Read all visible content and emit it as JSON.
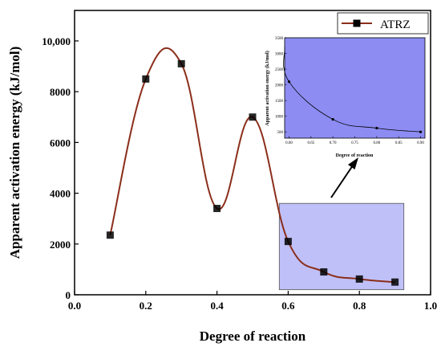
{
  "chart_data": [
    {
      "type": "line",
      "title": "",
      "xlabel": "Degree of reaction",
      "ylabel": "Apparent activation energy (kJ/mol)",
      "xlim": [
        0.0,
        1.0
      ],
      "ylim": [
        0,
        11200
      ],
      "x_ticks": [
        0.0,
        0.2,
        0.4,
        0.6,
        0.8,
        1.0
      ],
      "x_tick_labels": [
        "0.0",
        "0.2",
        "0.4",
        "0.6",
        "0.8",
        "1.0"
      ],
      "y_ticks": [
        0,
        2000,
        4000,
        6000,
        8000,
        10000
      ],
      "y_tick_labels": [
        "0",
        "2000",
        "4000",
        "6000",
        "8000",
        "10,000"
      ],
      "legend_position": "top-right",
      "grid": false,
      "series": [
        {
          "name": "ATRZ",
          "line_color": "#8B2E1A",
          "marker_color": "#000000",
          "x": [
            0.1,
            0.2,
            0.3,
            0.4,
            0.5,
            0.6,
            0.7,
            0.8,
            0.9
          ],
          "y": [
            2350,
            8500,
            9100,
            3400,
            7000,
            2100,
            900,
            620,
            500
          ]
        }
      ],
      "highlight_box": {
        "xlim": [
          0.575,
          0.925
        ],
        "ylim": [
          200,
          3600
        ],
        "color": "#8C8CF2"
      }
    },
    {
      "type": "line",
      "title": "",
      "xlabel": "Degree of reaction",
      "ylabel": "Apparent activation energy (kJ/mol)",
      "xlim": [
        0.59,
        0.91
      ],
      "ylim": [
        300,
        3500
      ],
      "x_ticks": [
        0.6,
        0.65,
        0.7,
        0.75,
        0.8,
        0.85,
        0.9
      ],
      "x_tick_labels": [
        "0.60",
        "0.65",
        "0.70",
        "0.75",
        "0.80",
        "0.85",
        "0.90"
      ],
      "y_ticks": [
        500,
        1000,
        1500,
        2000,
        2500,
        3000,
        3500
      ],
      "y_tick_labels": [
        "500",
        "1000",
        "1500",
        "2000",
        "2500",
        "3000",
        "3500"
      ],
      "background": "#8C8CF2",
      "series": [
        {
          "x": [
            0.6,
            0.7,
            0.8,
            0.9
          ],
          "y": [
            2100,
            900,
            620,
            500
          ]
        }
      ]
    }
  ]
}
